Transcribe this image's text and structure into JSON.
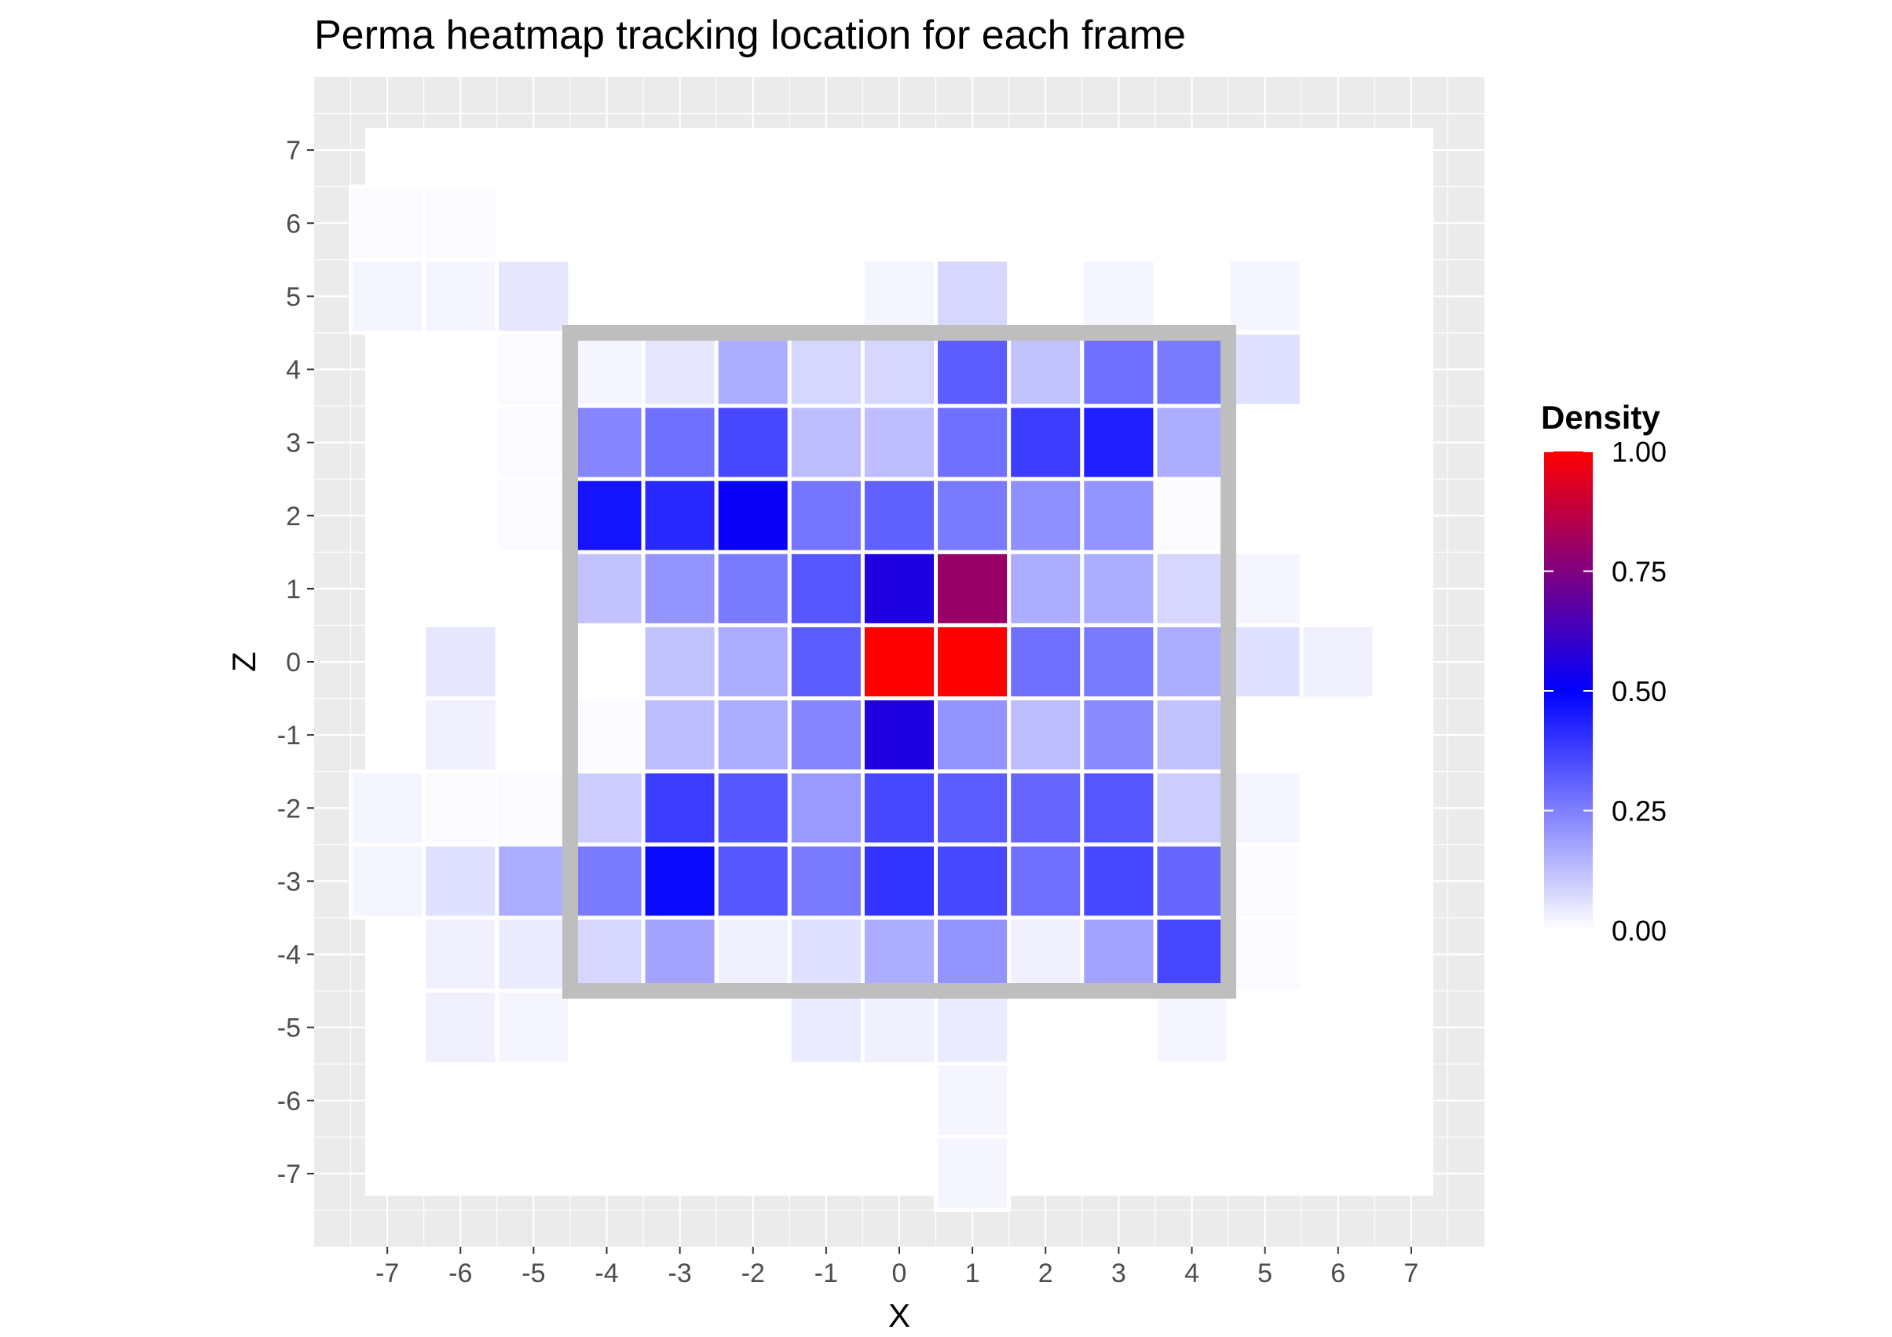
{
  "chart_data": {
    "type": "heatmap",
    "title": "Perma heatmap tracking location for each frame",
    "xlabel": "X",
    "ylabel": "Z",
    "xlim": [
      -8,
      8
    ],
    "ylim": [
      -8,
      8
    ],
    "x_ticks": [
      -7,
      -6,
      -5,
      -4,
      -3,
      -2,
      -1,
      0,
      1,
      2,
      3,
      4,
      5,
      6,
      7
    ],
    "y_ticks": [
      -7,
      -6,
      -5,
      -4,
      -3,
      -2,
      -1,
      0,
      1,
      2,
      3,
      4,
      5,
      6,
      7
    ],
    "grid": true,
    "legend": {
      "title": "Density",
      "position": "right",
      "breaks": [
        1.0,
        0.75,
        0.5,
        0.25,
        0.0
      ],
      "labels": [
        "1.00",
        "0.75",
        "0.50",
        "0.25",
        "0.00"
      ],
      "colors": {
        "low": "#ffffff",
        "mid": "#0000ff",
        "high": "#ff0000"
      }
    },
    "zone": {
      "x": [
        -4.5,
        4.5
      ],
      "z": [
        -4.5,
        4.5
      ],
      "color": "#bebebe"
    },
    "cells": [
      {
        "x": -7,
        "z": 6,
        "v": 0.01
      },
      {
        "x": -6,
        "z": 6,
        "v": 0.01
      },
      {
        "x": -7,
        "z": 5,
        "v": 0.02
      },
      {
        "x": -6,
        "z": 5,
        "v": 0.02
      },
      {
        "x": -5,
        "z": 5,
        "v": 0.05
      },
      {
        "x": 0,
        "z": 5,
        "v": 0.02
      },
      {
        "x": 1,
        "z": 5,
        "v": 0.08
      },
      {
        "x": 3,
        "z": 5,
        "v": 0.02
      },
      {
        "x": 5,
        "z": 5,
        "v": 0.02
      },
      {
        "x": -5,
        "z": 4,
        "v": 0.01
      },
      {
        "x": -4,
        "z": 4,
        "v": 0.02
      },
      {
        "x": -3,
        "z": 4,
        "v": 0.05
      },
      {
        "x": -2,
        "z": 4,
        "v": 0.16
      },
      {
        "x": -1,
        "z": 4,
        "v": 0.08
      },
      {
        "x": 0,
        "z": 4,
        "v": 0.08
      },
      {
        "x": 1,
        "z": 4,
        "v": 0.32
      },
      {
        "x": 2,
        "z": 4,
        "v": 0.12
      },
      {
        "x": 3,
        "z": 4,
        "v": 0.28
      },
      {
        "x": 4,
        "z": 4,
        "v": 0.26
      },
      {
        "x": 5,
        "z": 4,
        "v": 0.06
      },
      {
        "x": -5,
        "z": 3,
        "v": 0.01
      },
      {
        "x": -4,
        "z": 3,
        "v": 0.24
      },
      {
        "x": -3,
        "z": 3,
        "v": 0.28
      },
      {
        "x": -2,
        "z": 3,
        "v": 0.36
      },
      {
        "x": -1,
        "z": 3,
        "v": 0.13
      },
      {
        "x": 0,
        "z": 3,
        "v": 0.13
      },
      {
        "x": 1,
        "z": 3,
        "v": 0.28
      },
      {
        "x": 2,
        "z": 3,
        "v": 0.38
      },
      {
        "x": 3,
        "z": 3,
        "v": 0.44
      },
      {
        "x": 4,
        "z": 3,
        "v": 0.16
      },
      {
        "x": -5,
        "z": 2,
        "v": 0.01
      },
      {
        "x": -4,
        "z": 2,
        "v": 0.46
      },
      {
        "x": -3,
        "z": 2,
        "v": 0.42
      },
      {
        "x": -2,
        "z": 2,
        "v": 0.52
      },
      {
        "x": -1,
        "z": 2,
        "v": 0.27
      },
      {
        "x": 0,
        "z": 2,
        "v": 0.31
      },
      {
        "x": 1,
        "z": 2,
        "v": 0.26
      },
      {
        "x": 2,
        "z": 2,
        "v": 0.22
      },
      {
        "x": 3,
        "z": 2,
        "v": 0.21
      },
      {
        "x": 4,
        "z": 2,
        "v": 0.01
      },
      {
        "x": -4,
        "z": 1,
        "v": 0.12
      },
      {
        "x": -3,
        "z": 1,
        "v": 0.21
      },
      {
        "x": -2,
        "z": 1,
        "v": 0.26
      },
      {
        "x": -1,
        "z": 1,
        "v": 0.33
      },
      {
        "x": 0,
        "z": 1,
        "v": 0.56
      },
      {
        "x": 1,
        "z": 1,
        "v": 0.8
      },
      {
        "x": 2,
        "z": 1,
        "v": 0.16
      },
      {
        "x": 3,
        "z": 1,
        "v": 0.16
      },
      {
        "x": 4,
        "z": 1,
        "v": 0.08
      },
      {
        "x": 5,
        "z": 1,
        "v": 0.02
      },
      {
        "x": -6,
        "z": 0,
        "v": 0.05
      },
      {
        "x": -3,
        "z": 0,
        "v": 0.12
      },
      {
        "x": -2,
        "z": 0,
        "v": 0.16
      },
      {
        "x": -1,
        "z": 0,
        "v": 0.32
      },
      {
        "x": 0,
        "z": 0,
        "v": 1.0
      },
      {
        "x": 1,
        "z": 0,
        "v": 1.0
      },
      {
        "x": 2,
        "z": 0,
        "v": 0.28
      },
      {
        "x": 3,
        "z": 0,
        "v": 0.26
      },
      {
        "x": 4,
        "z": 0,
        "v": 0.16
      },
      {
        "x": 5,
        "z": 0,
        "v": 0.06
      },
      {
        "x": 6,
        "z": 0,
        "v": 0.03
      },
      {
        "x": -6,
        "z": -1,
        "v": 0.03
      },
      {
        "x": -4,
        "z": -1,
        "v": 0.01
      },
      {
        "x": -3,
        "z": -1,
        "v": 0.13
      },
      {
        "x": -2,
        "z": -1,
        "v": 0.16
      },
      {
        "x": -1,
        "z": -1,
        "v": 0.24
      },
      {
        "x": 0,
        "z": -1,
        "v": 0.56
      },
      {
        "x": 1,
        "z": -1,
        "v": 0.21
      },
      {
        "x": 2,
        "z": -1,
        "v": 0.13
      },
      {
        "x": 3,
        "z": -1,
        "v": 0.23
      },
      {
        "x": 4,
        "z": -1,
        "v": 0.12
      },
      {
        "x": -7,
        "z": -2,
        "v": 0.02
      },
      {
        "x": -6,
        "z": -2,
        "v": 0.01
      },
      {
        "x": -5,
        "z": -2,
        "v": 0.01
      },
      {
        "x": -4,
        "z": -2,
        "v": 0.1
      },
      {
        "x": -3,
        "z": -2,
        "v": 0.38
      },
      {
        "x": -2,
        "z": -2,
        "v": 0.33
      },
      {
        "x": -1,
        "z": -2,
        "v": 0.2
      },
      {
        "x": 0,
        "z": -2,
        "v": 0.36
      },
      {
        "x": 1,
        "z": -2,
        "v": 0.32
      },
      {
        "x": 2,
        "z": -2,
        "v": 0.3
      },
      {
        "x": 3,
        "z": -2,
        "v": 0.33
      },
      {
        "x": 4,
        "z": -2,
        "v": 0.1
      },
      {
        "x": 5,
        "z": -2,
        "v": 0.02
      },
      {
        "x": -7,
        "z": -3,
        "v": 0.02
      },
      {
        "x": -6,
        "z": -3,
        "v": 0.06
      },
      {
        "x": -5,
        "z": -3,
        "v": 0.16
      },
      {
        "x": -4,
        "z": -3,
        "v": 0.26
      },
      {
        "x": -3,
        "z": -3,
        "v": 0.48
      },
      {
        "x": -2,
        "z": -3,
        "v": 0.33
      },
      {
        "x": -1,
        "z": -3,
        "v": 0.26
      },
      {
        "x": 0,
        "z": -3,
        "v": 0.4
      },
      {
        "x": 1,
        "z": -3,
        "v": 0.36
      },
      {
        "x": 2,
        "z": -3,
        "v": 0.28
      },
      {
        "x": 3,
        "z": -3,
        "v": 0.36
      },
      {
        "x": 4,
        "z": -3,
        "v": 0.3
      },
      {
        "x": 5,
        "z": -3,
        "v": 0.01
      },
      {
        "x": -6,
        "z": -4,
        "v": 0.03
      },
      {
        "x": -5,
        "z": -4,
        "v": 0.04
      },
      {
        "x": -4,
        "z": -4,
        "v": 0.08
      },
      {
        "x": -3,
        "z": -4,
        "v": 0.18
      },
      {
        "x": -2,
        "z": -4,
        "v": 0.03
      },
      {
        "x": -1,
        "z": -4,
        "v": 0.06
      },
      {
        "x": 0,
        "z": -4,
        "v": 0.16
      },
      {
        "x": 1,
        "z": -4,
        "v": 0.21
      },
      {
        "x": 2,
        "z": -4,
        "v": 0.03
      },
      {
        "x": 3,
        "z": -4,
        "v": 0.18
      },
      {
        "x": 4,
        "z": -4,
        "v": 0.36
      },
      {
        "x": 5,
        "z": -4,
        "v": 0.01
      },
      {
        "x": -6,
        "z": -5,
        "v": 0.03
      },
      {
        "x": -5,
        "z": -5,
        "v": 0.02
      },
      {
        "x": -1,
        "z": -5,
        "v": 0.04
      },
      {
        "x": 0,
        "z": -5,
        "v": 0.03
      },
      {
        "x": 1,
        "z": -5,
        "v": 0.04
      },
      {
        "x": 4,
        "z": -5,
        "v": 0.02
      },
      {
        "x": 1,
        "z": -6,
        "v": 0.02
      },
      {
        "x": 1,
        "z": -7,
        "v": 0.02
      }
    ]
  }
}
